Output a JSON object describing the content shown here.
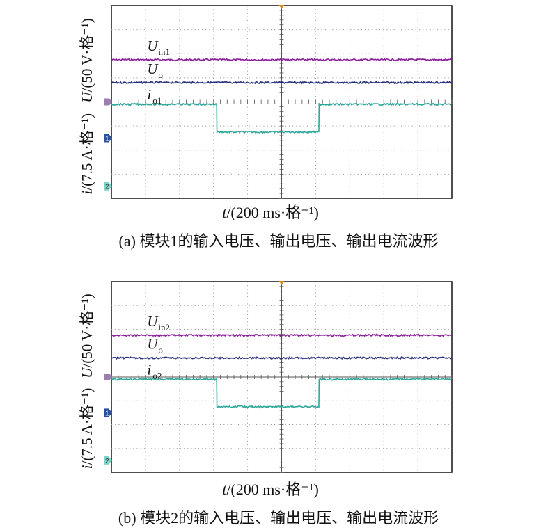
{
  "colors": {
    "uin": "#8a1f9a",
    "uo": "#27307a",
    "io": "#2fa89a",
    "grid": "#9a9a9a",
    "trigger": "#e08a1e",
    "marker_u": "#9a7fb0",
    "marker_1": "#2b50a0",
    "marker_2": "#7fd3c8"
  },
  "chart_data": [
    {
      "type": "line",
      "caption": "(a) 模块1的输入电压、输出电压、输出电流波形",
      "xlabel": {
        "var": "t",
        "unit": "/(200 ms·格⁻¹)"
      },
      "ylabel_top": {
        "var": "U",
        "unit": "/(50 V·格⁻¹)"
      },
      "ylabel_bottom": {
        "var": "i",
        "unit": "/(7.5 A·格⁻¹)"
      },
      "xlim": [
        0,
        10
      ],
      "ylim": [
        0,
        8
      ],
      "grid": true,
      "channel_markers": [
        "1",
        "2"
      ],
      "series": [
        {
          "name": "Uin1",
          "label_main": "U",
          "label_sub": "in1",
          "label_italic": true,
          "color_key": "uin",
          "x": [
            0,
            10
          ],
          "y": [
            5.75,
            5.75
          ]
        },
        {
          "name": "Uo",
          "label_main": "U",
          "label_sub": "o",
          "label_italic": true,
          "color_key": "uo",
          "x": [
            0,
            10
          ],
          "y": [
            4.8,
            4.8
          ]
        },
        {
          "name": "io1",
          "label_main": "i",
          "label_sub": "o1",
          "label_italic": true,
          "color_key": "io",
          "x": [
            0,
            3.1,
            3.1,
            6.1,
            6.1,
            10
          ],
          "y": [
            3.9,
            3.9,
            2.75,
            2.75,
            3.9,
            3.9
          ]
        }
      ]
    },
    {
      "type": "line",
      "caption": "(b) 模块2的输入电压、输出电压、输出电流波形",
      "xlabel": {
        "var": "t",
        "unit": "/(200 ms·格⁻¹)"
      },
      "ylabel_top": {
        "var": "U",
        "unit": "/(50 V·格⁻¹)"
      },
      "ylabel_bottom": {
        "var": "i",
        "unit": "/(7.5 A·格⁻¹)"
      },
      "xlim": [
        0,
        10
      ],
      "ylim": [
        0,
        8
      ],
      "grid": true,
      "channel_markers": [
        "1",
        "2"
      ],
      "series": [
        {
          "name": "Uin2",
          "label_main": "U",
          "label_sub": "in2",
          "label_italic": true,
          "color_key": "uin",
          "x": [
            0,
            10
          ],
          "y": [
            5.75,
            5.75
          ]
        },
        {
          "name": "Uo",
          "label_main": "U",
          "label_sub": "o",
          "label_italic": true,
          "color_key": "uo",
          "x": [
            0,
            10
          ],
          "y": [
            4.8,
            4.8
          ]
        },
        {
          "name": "io2",
          "label_main": "i",
          "label_sub": "o2",
          "label_italic": true,
          "color_key": "io",
          "x": [
            0,
            3.1,
            3.1,
            6.1,
            6.1,
            10
          ],
          "y": [
            3.9,
            3.9,
            2.75,
            2.75,
            3.9,
            3.9
          ]
        }
      ]
    }
  ]
}
